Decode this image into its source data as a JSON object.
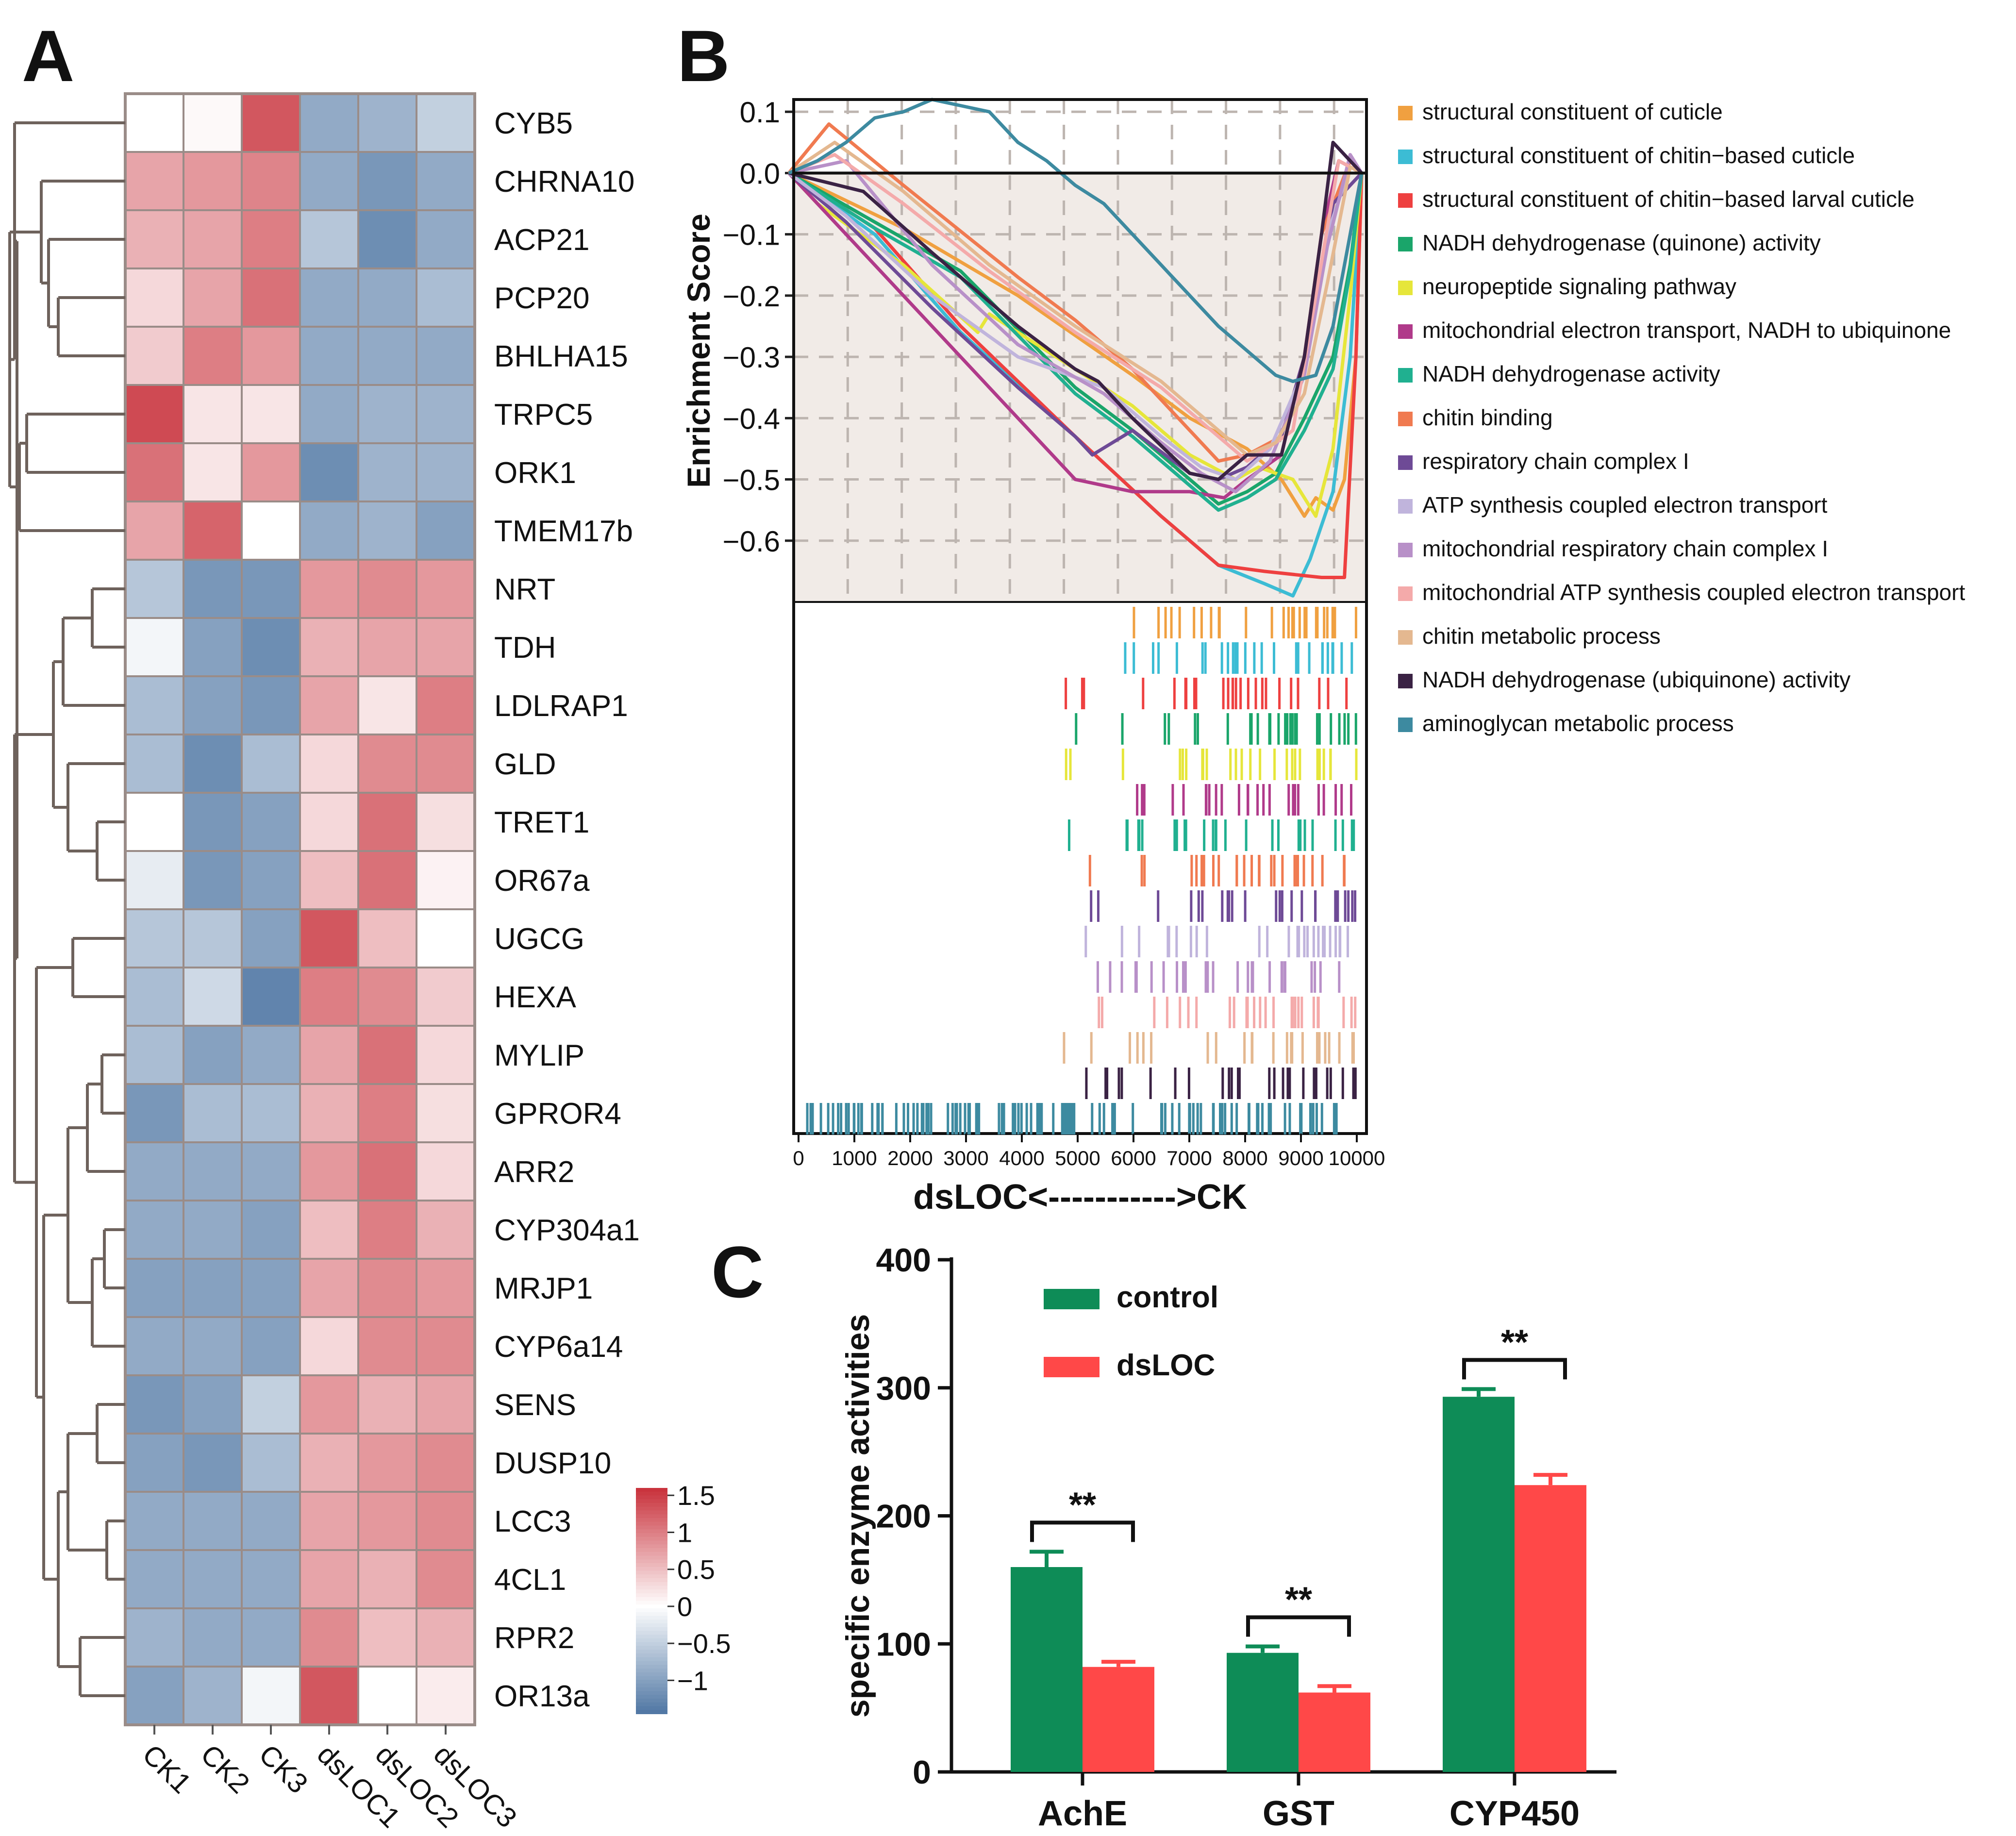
{
  "panels": {
    "a": "A",
    "b": "B",
    "c": "C"
  },
  "heatmap": {
    "rows": [
      "CYB5",
      "CHRNA10",
      "ACP21",
      "PCP20",
      "BHLHA15",
      "TRPC5",
      "ORK1",
      "TMEM17b",
      "NRT",
      "TDH",
      "LDLRAP1",
      "GLD",
      "TRET1",
      "OR67a",
      "UGCG",
      "HEXA",
      "MYLIP",
      "GPROR4",
      "ARR2",
      "CYP304a1",
      "MRJP1",
      "CYP6a14",
      "SENS",
      "DUSP10",
      "LCC3",
      "4CL1",
      "RPR2",
      "OR13a"
    ],
    "columns": [
      "CK1",
      "CK2",
      "CK3",
      "dsLOC1",
      "dsLOC2",
      "dsLOC3"
    ],
    "values": [
      [
        0.0,
        0.05,
        1.3,
        -0.9,
        -0.8,
        -0.5
      ],
      [
        0.7,
        0.8,
        0.95,
        -0.9,
        -1.1,
        -0.9
      ],
      [
        0.6,
        0.7,
        1.0,
        -0.6,
        -1.2,
        -0.9
      ],
      [
        0.3,
        0.7,
        1.1,
        -0.9,
        -0.9,
        -0.7
      ],
      [
        0.4,
        1.0,
        0.8,
        -0.9,
        -0.9,
        -0.9
      ],
      [
        1.4,
        0.2,
        0.2,
        -0.9,
        -0.8,
        -0.8
      ],
      [
        1.1,
        0.2,
        0.8,
        -1.2,
        -0.8,
        -0.8
      ],
      [
        0.7,
        1.2,
        0.0,
        -0.9,
        -0.8,
        -1.0
      ],
      [
        -0.6,
        -1.1,
        -1.1,
        0.8,
        0.9,
        0.8
      ],
      [
        -0.1,
        -1.0,
        -1.2,
        0.6,
        0.7,
        0.7
      ],
      [
        -0.7,
        -1.0,
        -1.1,
        0.7,
        0.2,
        1.0
      ],
      [
        -0.7,
        -1.2,
        -0.7,
        0.3,
        0.9,
        0.9
      ],
      [
        0.0,
        -1.1,
        -1.0,
        0.3,
        1.1,
        0.25
      ],
      [
        -0.2,
        -1.1,
        -1.0,
        0.5,
        1.1,
        0.1
      ],
      [
        -0.6,
        -0.6,
        -1.0,
        1.3,
        0.5,
        0.0
      ],
      [
        -0.7,
        -0.4,
        -1.3,
        1.0,
        0.9,
        0.4
      ],
      [
        -0.7,
        -1.0,
        -0.9,
        0.7,
        1.1,
        0.3
      ],
      [
        -1.1,
        -0.7,
        -0.7,
        0.6,
        1.0,
        0.25
      ],
      [
        -0.9,
        -0.9,
        -0.9,
        0.8,
        1.1,
        0.3
      ],
      [
        -0.9,
        -0.9,
        -1.0,
        0.5,
        1.0,
        0.6
      ],
      [
        -1.0,
        -1.0,
        -1.0,
        0.7,
        0.9,
        0.8
      ],
      [
        -0.9,
        -0.9,
        -1.0,
        0.3,
        0.9,
        0.9
      ],
      [
        -1.1,
        -1.0,
        -0.5,
        0.8,
        0.6,
        0.7
      ],
      [
        -1.0,
        -1.1,
        -0.7,
        0.6,
        0.8,
        0.9
      ],
      [
        -0.9,
        -0.9,
        -0.9,
        0.7,
        0.8,
        0.9
      ],
      [
        -0.9,
        -0.9,
        -0.9,
        0.7,
        0.6,
        0.9
      ],
      [
        -0.8,
        -0.9,
        -0.9,
        0.9,
        0.5,
        0.6
      ],
      [
        -1.0,
        -0.8,
        -0.1,
        1.3,
        0.0,
        0.15
      ]
    ],
    "colorbar": {
      "ticks": [
        "1.5",
        "1",
        "0.5",
        "0",
        "−0.5",
        "−1"
      ],
      "tick_values": [
        1.5,
        1,
        0.5,
        0,
        -0.5,
        -1
      ],
      "range": [
        -1.45,
        1.6
      ]
    },
    "colors": {
      "low": "#4f76a3",
      "mid": "#ffffff",
      "high": "#c8303a",
      "grid": "#9a8c88",
      "tree": "#6e625c"
    }
  },
  "gsea": {
    "ylabel": "Enrichment Score",
    "xlabel": "dsLOC<----------->CK",
    "yticks": [
      "0.1",
      "0.0",
      "−0.1",
      "−0.2",
      "−0.3",
      "−0.4",
      "−0.5",
      "−0.6"
    ],
    "ytick_values": [
      0.1,
      0.0,
      -0.1,
      -0.2,
      -0.3,
      -0.4,
      -0.5,
      -0.6
    ],
    "xticks": [
      "0",
      "1000",
      "2000",
      "3000",
      "4000",
      "5000",
      "6000",
      "7000",
      "8000",
      "9000",
      "10000"
    ],
    "xtick_values": [
      0,
      1000,
      2000,
      3000,
      4000,
      5000,
      6000,
      7000,
      8000,
      9000,
      10000
    ],
    "legend": [
      "structural constituent of cuticle",
      "structural constituent of chitin−based cuticle",
      "structural constituent of chitin−based larval cuticle",
      "NADH dehydrogenase (quinone) activity",
      "neuropeptide signaling pathway",
      "mitochondrial electron transport, NADH to ubiquinone",
      "NADH dehydrogenase activity",
      "chitin binding",
      "respiratory chain complex I",
      "ATP synthesis coupled electron transport",
      "mitochondrial respiratory chain complex I",
      "mitochondrial ATP synthesis coupled electron transport",
      "chitin metabolic process",
      "NADH dehydrogenase (ubiquinone) activity",
      "aminoglycan metabolic process"
    ],
    "colors": [
      "#f0a040",
      "#3cbcd4",
      "#ee4040",
      "#1aa56a",
      "#e6e63a",
      "#b03a8a",
      "#20b090",
      "#f07a50",
      "#6e4a96",
      "#c0b4dc",
      "#b890c8",
      "#f4aaaa",
      "#e4b890",
      "#3a2244",
      "#3d8aa0"
    ]
  },
  "chart_data": [
    {
      "type": "heatmap",
      "title": "A",
      "rows": "see heatmap.rows",
      "columns": [
        "CK1",
        "CK2",
        "CK3",
        "dsLOC1",
        "dsLOC2",
        "dsLOC3"
      ],
      "value_range": [
        -1.45,
        1.6
      ]
    },
    {
      "type": "line",
      "title": "B",
      "xlabel": "dsLOC<----------->CK",
      "ylabel": "Enrichment Score",
      "xlim": [
        0,
        10000
      ],
      "ylim": [
        -0.7,
        0.12
      ],
      "series": [
        {
          "name": "structural constituent of cuticle",
          "x": [
            0,
            2000,
            4000,
            6000,
            7000,
            8000,
            8600,
            9000,
            9200,
            9500,
            9700,
            9900,
            10000
          ],
          "y": [
            0,
            -0.09,
            -0.2,
            -0.33,
            -0.4,
            -0.45,
            -0.5,
            -0.56,
            -0.53,
            -0.55,
            -0.5,
            -0.3,
            0
          ]
        },
        {
          "name": "structural constituent of chitin-based cuticle",
          "x": [
            0,
            1500,
            3000,
            5000,
            6500,
            7500,
            8300,
            8800,
            9100,
            9500,
            9800,
            10000
          ],
          "y": [
            0,
            -0.1,
            -0.26,
            -0.43,
            -0.56,
            -0.64,
            -0.67,
            -0.69,
            -0.63,
            -0.52,
            -0.3,
            0
          ]
        },
        {
          "name": "structural constituent of chitin-based larval cuticle",
          "x": [
            0,
            1500,
            3000,
            5000,
            6500,
            7500,
            8300,
            9300,
            9700,
            9900,
            10000
          ],
          "y": [
            0,
            -0.09,
            -0.25,
            -0.43,
            -0.56,
            -0.64,
            -0.65,
            -0.66,
            -0.66,
            -0.3,
            0
          ]
        },
        {
          "name": "NADH dehydrogenase (quinone) activity",
          "x": [
            0,
            1500,
            3000,
            5000,
            6000,
            7000,
            7500,
            8000,
            8500,
            9000,
            9500,
            9800,
            10000
          ],
          "y": [
            0,
            -0.08,
            -0.16,
            -0.35,
            -0.42,
            -0.5,
            -0.54,
            -0.52,
            -0.49,
            -0.4,
            -0.3,
            -0.15,
            0
          ]
        },
        {
          "name": "neuropeptide signaling pathway",
          "x": [
            0,
            500,
            2000,
            3300,
            3500,
            5000,
            6000,
            7000,
            7800,
            8200,
            8800,
            9200,
            9500,
            9800,
            10000
          ],
          "y": [
            0,
            -0.05,
            -0.15,
            -0.26,
            -0.23,
            -0.32,
            -0.38,
            -0.46,
            -0.5,
            -0.48,
            -0.5,
            -0.56,
            -0.45,
            -0.2,
            0
          ]
        },
        {
          "name": "mitochondrial electron transport, NADH to ubiquinone",
          "x": [
            0,
            1000,
            2500,
            4000,
            5000,
            6000,
            7000,
            7600,
            8000,
            8600,
            9000,
            9300,
            9600,
            10000
          ],
          "y": [
            0,
            -0.1,
            -0.25,
            -0.4,
            -0.5,
            -0.52,
            -0.52,
            -0.53,
            -0.5,
            -0.46,
            -0.3,
            -0.1,
            0.02,
            0
          ]
        },
        {
          "name": "NADH dehydrogenase activity",
          "x": [
            0,
            1500,
            3000,
            5000,
            6000,
            7000,
            7500,
            8000,
            8500,
            9000,
            9500,
            9800,
            10000
          ],
          "y": [
            0,
            -0.09,
            -0.17,
            -0.36,
            -0.43,
            -0.51,
            -0.55,
            -0.53,
            -0.5,
            -0.42,
            -0.32,
            -0.16,
            0
          ]
        },
        {
          "name": "chitin binding",
          "x": [
            0,
            700,
            2000,
            4000,
            5000,
            6000,
            7000,
            7500,
            8000,
            8600,
            9000,
            9300,
            9800,
            10000
          ],
          "y": [
            0,
            0.08,
            -0.02,
            -0.17,
            -0.24,
            -0.32,
            -0.42,
            -0.47,
            -0.46,
            -0.43,
            -0.3,
            -0.1,
            0.02,
            0
          ]
        },
        {
          "name": "respiratory chain complex I",
          "x": [
            0,
            1000,
            2500,
            4000,
            5000,
            5300,
            6000,
            7000,
            7500,
            8000,
            8600,
            9000,
            9500,
            10000
          ],
          "y": [
            0,
            -0.08,
            -0.22,
            -0.35,
            -0.43,
            -0.46,
            -0.42,
            -0.49,
            -0.5,
            -0.48,
            -0.43,
            -0.3,
            -0.05,
            0
          ]
        },
        {
          "name": "ATP synthesis coupled electron transport",
          "x": [
            0,
            1000,
            2500,
            4000,
            5500,
            6500,
            7200,
            7800,
            8400,
            9000,
            9400,
            9800,
            10000
          ],
          "y": [
            0,
            -0.07,
            -0.2,
            -0.3,
            -0.35,
            -0.43,
            -0.48,
            -0.5,
            -0.45,
            -0.32,
            -0.1,
            0.01,
            0
          ]
        },
        {
          "name": "mitochondrial respiratory chain complex I",
          "x": [
            0,
            1000,
            2500,
            4000,
            5500,
            6500,
            7200,
            7800,
            8400,
            9000,
            9400,
            9800,
            10000
          ],
          "y": [
            0,
            0.02,
            -0.15,
            -0.28,
            -0.36,
            -0.44,
            -0.49,
            -0.52,
            -0.47,
            -0.33,
            -0.12,
            0.03,
            0
          ]
        },
        {
          "name": "mitochondrial ATP synthesis coupled electron transport",
          "x": [
            0,
            800,
            2000,
            3500,
            5000,
            6500,
            7500,
            8000,
            8500,
            8800,
            9200,
            9600,
            10000
          ],
          "y": [
            0,
            0.03,
            -0.05,
            -0.16,
            -0.26,
            -0.35,
            -0.43,
            -0.47,
            -0.44,
            -0.42,
            -0.2,
            0.02,
            0
          ]
        },
        {
          "name": "chitin metabolic process",
          "x": [
            0,
            800,
            2000,
            3500,
            5000,
            6500,
            7500,
            8000,
            8500,
            9000,
            9400,
            9800,
            10000
          ],
          "y": [
            0,
            0.05,
            -0.03,
            -0.15,
            -0.25,
            -0.34,
            -0.42,
            -0.46,
            -0.44,
            -0.36,
            -0.18,
            0.01,
            0
          ]
        },
        {
          "name": "NADH dehydrogenase (ubiquinone) activity",
          "x": [
            0,
            1300,
            2500,
            4000,
            5000,
            5400,
            6000,
            7000,
            7500,
            8000,
            8600,
            9000,
            9300,
            9500,
            9800,
            10000
          ],
          "y": [
            0,
            -0.03,
            -0.13,
            -0.25,
            -0.32,
            -0.34,
            -0.4,
            -0.49,
            -0.5,
            -0.46,
            -0.46,
            -0.3,
            -0.1,
            0.05,
            0.02,
            0
          ]
        },
        {
          "name": "aminoglycan metabolic process",
          "x": [
            0,
            500,
            1000,
            1500,
            2000,
            2500,
            3000,
            3500,
            4000,
            4500,
            5000,
            5500,
            6000,
            6500,
            7000,
            7500,
            8000,
            8500,
            8800,
            9200,
            9500,
            9800,
            10000
          ],
          "y": [
            0,
            0.02,
            0.05,
            0.09,
            0.1,
            0.12,
            0.11,
            0.1,
            0.05,
            0.02,
            -0.02,
            -0.05,
            -0.1,
            -0.15,
            -0.2,
            -0.25,
            -0.29,
            -0.33,
            -0.34,
            -0.33,
            -0.25,
            -0.1,
            0
          ]
        }
      ]
    },
    {
      "type": "bar",
      "title": "C",
      "categories": [
        "AchE",
        "GST",
        "CYP450"
      ],
      "series": [
        {
          "name": "control",
          "values": [
            160,
            93,
            293
          ],
          "errors": [
            12,
            5,
            6
          ],
          "color": "#0e8c57"
        },
        {
          "name": "dsLOC",
          "values": [
            82,
            62,
            224
          ],
          "errors": [
            4,
            5,
            8
          ],
          "color": "#ff4848"
        }
      ],
      "ylabel": "specific enzyme activities",
      "ylim": [
        0,
        400
      ],
      "yticks": [
        "0",
        "100",
        "200",
        "300",
        "400"
      ],
      "ytick_values": [
        0,
        100,
        200,
        300,
        400
      ],
      "significance": [
        "**",
        "**",
        "**"
      ]
    }
  ]
}
